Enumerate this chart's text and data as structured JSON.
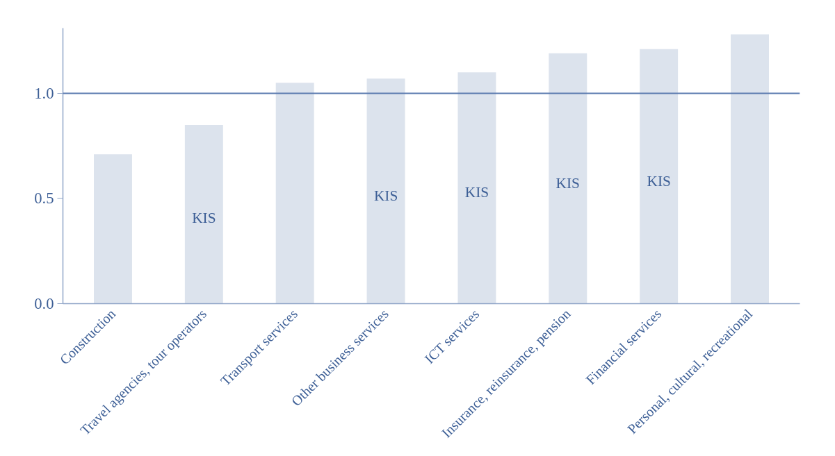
{
  "chart_data": {
    "type": "bar",
    "categories": [
      "Construction",
      "Travel agencies, tour operators",
      "Transport services",
      "Other business services",
      "ICT services",
      "Insurance, reinsurance, pension",
      "Financial services",
      "Personal, cultural, recreational"
    ],
    "values": [
      0.71,
      0.85,
      1.05,
      1.07,
      1.1,
      1.19,
      1.21,
      1.28
    ],
    "color": "#dce3ed",
    "ylim": [
      0,
      1.31
    ],
    "yticks": [
      {
        "value": 0,
        "label": "0.0"
      },
      {
        "value": 0.5,
        "label": "0.5"
      },
      {
        "value": 1,
        "label": "1.0"
      }
    ],
    "grid": false,
    "ref_lines": [
      {
        "axis": "y",
        "value": 1,
        "color": "#5b7bb0"
      }
    ],
    "value_labels": [
      null,
      "KIS",
      null,
      "KIS",
      "KIS",
      "KIS",
      "KIS",
      null
    ]
  }
}
